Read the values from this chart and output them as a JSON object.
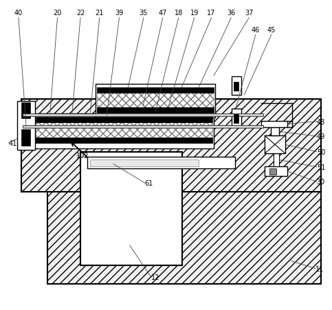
{
  "fig_width": 4.83,
  "fig_height": 4.52,
  "dpi": 100,
  "bg_color": "#ffffff",
  "line_color": "#000000"
}
